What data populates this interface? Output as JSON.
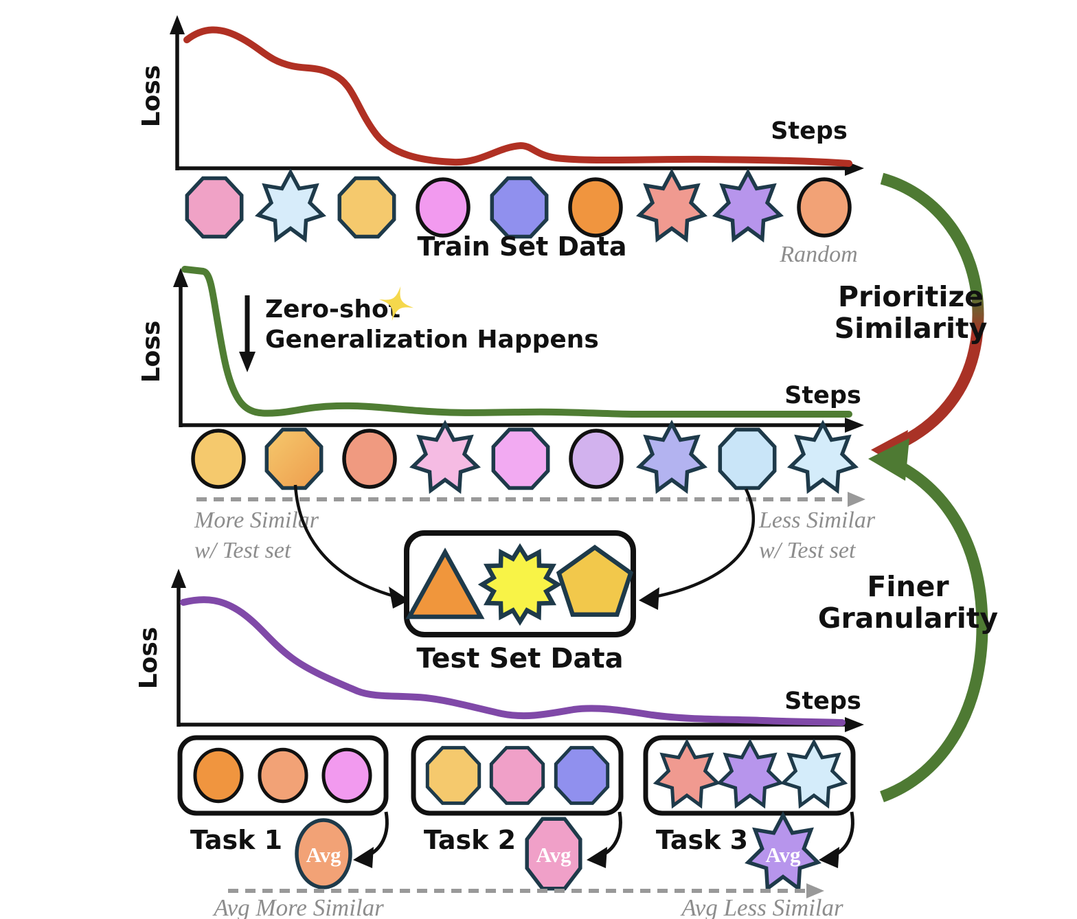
{
  "colors": {
    "axis": "#111111",
    "train_curve": "#b03023",
    "generalization_curve": "#4f7d33",
    "tasks_curve": "#8049a8",
    "arrow_green": "#4e7a33",
    "arrow_red": "#a93226",
    "dashed_gray": "#999999",
    "shape_outline": "#1e3a4a",
    "sparkle": "#f5d84c"
  },
  "axis_labels": {
    "loss": "Loss",
    "steps": "Steps"
  },
  "zero_shot": {
    "line1": "Zero-shot",
    "line2": "Generalization Happens"
  },
  "side_arrows": {
    "prioritize_line1": "Prioritize",
    "prioritize_line2": "Similarity",
    "finer_line1": "Finer",
    "finer_line2": "Granularity"
  },
  "train_row": {
    "label": "Train Set Data",
    "random_label": "Random",
    "shapes": [
      {
        "shape": "octagon",
        "name": "pink-octagon",
        "fill": "#f0a2c6",
        "stroke": "#1e3a4a"
      },
      {
        "shape": "star7",
        "name": "light-blue-star",
        "fill": "#d7ecfa",
        "stroke": "#1e3a4a"
      },
      {
        "shape": "octagon",
        "name": "gold-octagon",
        "fill": "#f5c96d",
        "stroke": "#1e3a4a"
      },
      {
        "shape": "circle",
        "name": "magenta-circle",
        "fill": "#f29aef",
        "stroke": "#111111"
      },
      {
        "shape": "octagon",
        "name": "periwinkle-octagon",
        "fill": "#9090ee",
        "stroke": "#1e3a4a"
      },
      {
        "shape": "circle",
        "name": "orange-circle",
        "fill": "#f0953f",
        "stroke": "#111111"
      },
      {
        "shape": "star7",
        "name": "salmon-star",
        "fill": "#f09a90",
        "stroke": "#1e3a4a"
      },
      {
        "shape": "star7",
        "name": "purple-star",
        "fill": "#b795ec",
        "stroke": "#1e3a4a"
      },
      {
        "shape": "circle",
        "name": "light-orange-circle",
        "fill": "#f2a276",
        "stroke": "#111111"
      }
    ]
  },
  "similarity_row": {
    "more_line1": "More Similar",
    "more_line2": "w/ Test set",
    "less_line1": "Less Similar",
    "less_line2": "w/ Test set",
    "shapes": [
      {
        "shape": "circle",
        "name": "gold-circle",
        "fill": "#f5c96d",
        "stroke": "#111111"
      },
      {
        "shape": "octagon",
        "name": "orange-gradient-octagon",
        "fill": "#f5c96d",
        "fill2": "#ee9c4d",
        "stroke": "#1e3a4a"
      },
      {
        "shape": "circle",
        "name": "salmon-circle",
        "fill": "#f09a80",
        "stroke": "#111111"
      },
      {
        "shape": "star7",
        "name": "pink-star",
        "fill": "#f5bbe3",
        "stroke": "#1e3a4a"
      },
      {
        "shape": "octagon",
        "name": "violet-octagon",
        "fill": "#f2aaf2",
        "stroke": "#1e3a4a"
      },
      {
        "shape": "circle",
        "name": "lavender-circle",
        "fill": "#d2b2ee",
        "stroke": "#111111"
      },
      {
        "shape": "star7",
        "name": "periwinkle-star",
        "fill": "#b3b3f0",
        "stroke": "#1e3a4a"
      },
      {
        "shape": "octagon",
        "name": "light-blue-octagon",
        "fill": "#c9e5f8",
        "stroke": "#1e3a4a"
      },
      {
        "shape": "star7",
        "name": "pale-blue-star",
        "fill": "#d4ecfa",
        "stroke": "#1e3a4a"
      }
    ]
  },
  "test_set": {
    "label": "Test Set Data",
    "shapes": [
      {
        "shape": "triangle",
        "name": "orange-triangle",
        "fill": "#f0963c",
        "stroke": "#1e3a4a"
      },
      {
        "shape": "star12",
        "name": "yellow-starburst",
        "fill": "#f8f347",
        "stroke": "#1e3a4a"
      },
      {
        "shape": "pentagon",
        "name": "gold-pentagon",
        "fill": "#f2c84b",
        "stroke": "#1e3a4a"
      }
    ]
  },
  "tasks": [
    {
      "label": "Task 1",
      "avg": {
        "shape": "circle",
        "name": "avg-orange-circle",
        "fill": "#f2a276",
        "stroke": "#1e3a4a",
        "label": "Avg"
      },
      "shapes": [
        {
          "shape": "circle",
          "name": "orange-circle",
          "fill": "#f0953f",
          "stroke": "#111111"
        },
        {
          "shape": "circle",
          "name": "light-orange-circle",
          "fill": "#f2a276",
          "stroke": "#111111"
        },
        {
          "shape": "circle",
          "name": "magenta-circle",
          "fill": "#f29aef",
          "stroke": "#111111"
        }
      ]
    },
    {
      "label": "Task 2",
      "avg": {
        "shape": "octagon",
        "name": "avg-pink-octagon",
        "fill": "#f0a0c8",
        "stroke": "#1e3a4a",
        "label": "Avg"
      },
      "shapes": [
        {
          "shape": "octagon",
          "name": "gold-octagon",
          "fill": "#f5c96d",
          "stroke": "#1e3a4a"
        },
        {
          "shape": "octagon",
          "name": "pink-octagon",
          "fill": "#f0a0c8",
          "stroke": "#1e3a4a"
        },
        {
          "shape": "octagon",
          "name": "periwinkle-octagon",
          "fill": "#9090ee",
          "stroke": "#1e3a4a"
        }
      ]
    },
    {
      "label": "Task 3",
      "avg": {
        "shape": "star7",
        "name": "avg-purple-star",
        "fill": "#b795ec",
        "stroke": "#1e3a4a",
        "label": "Avg"
      },
      "shapes": [
        {
          "shape": "star7",
          "name": "salmon-star",
          "fill": "#f09a90",
          "stroke": "#1e3a4a"
        },
        {
          "shape": "star7",
          "name": "purple-star",
          "fill": "#b795ec",
          "stroke": "#1e3a4a"
        },
        {
          "shape": "star7",
          "name": "pale-blue-star",
          "fill": "#d4ecfa",
          "stroke": "#1e3a4a"
        }
      ]
    }
  ],
  "avg_axis": {
    "more": "Avg More Similar",
    "less": "Avg Less Similar"
  }
}
